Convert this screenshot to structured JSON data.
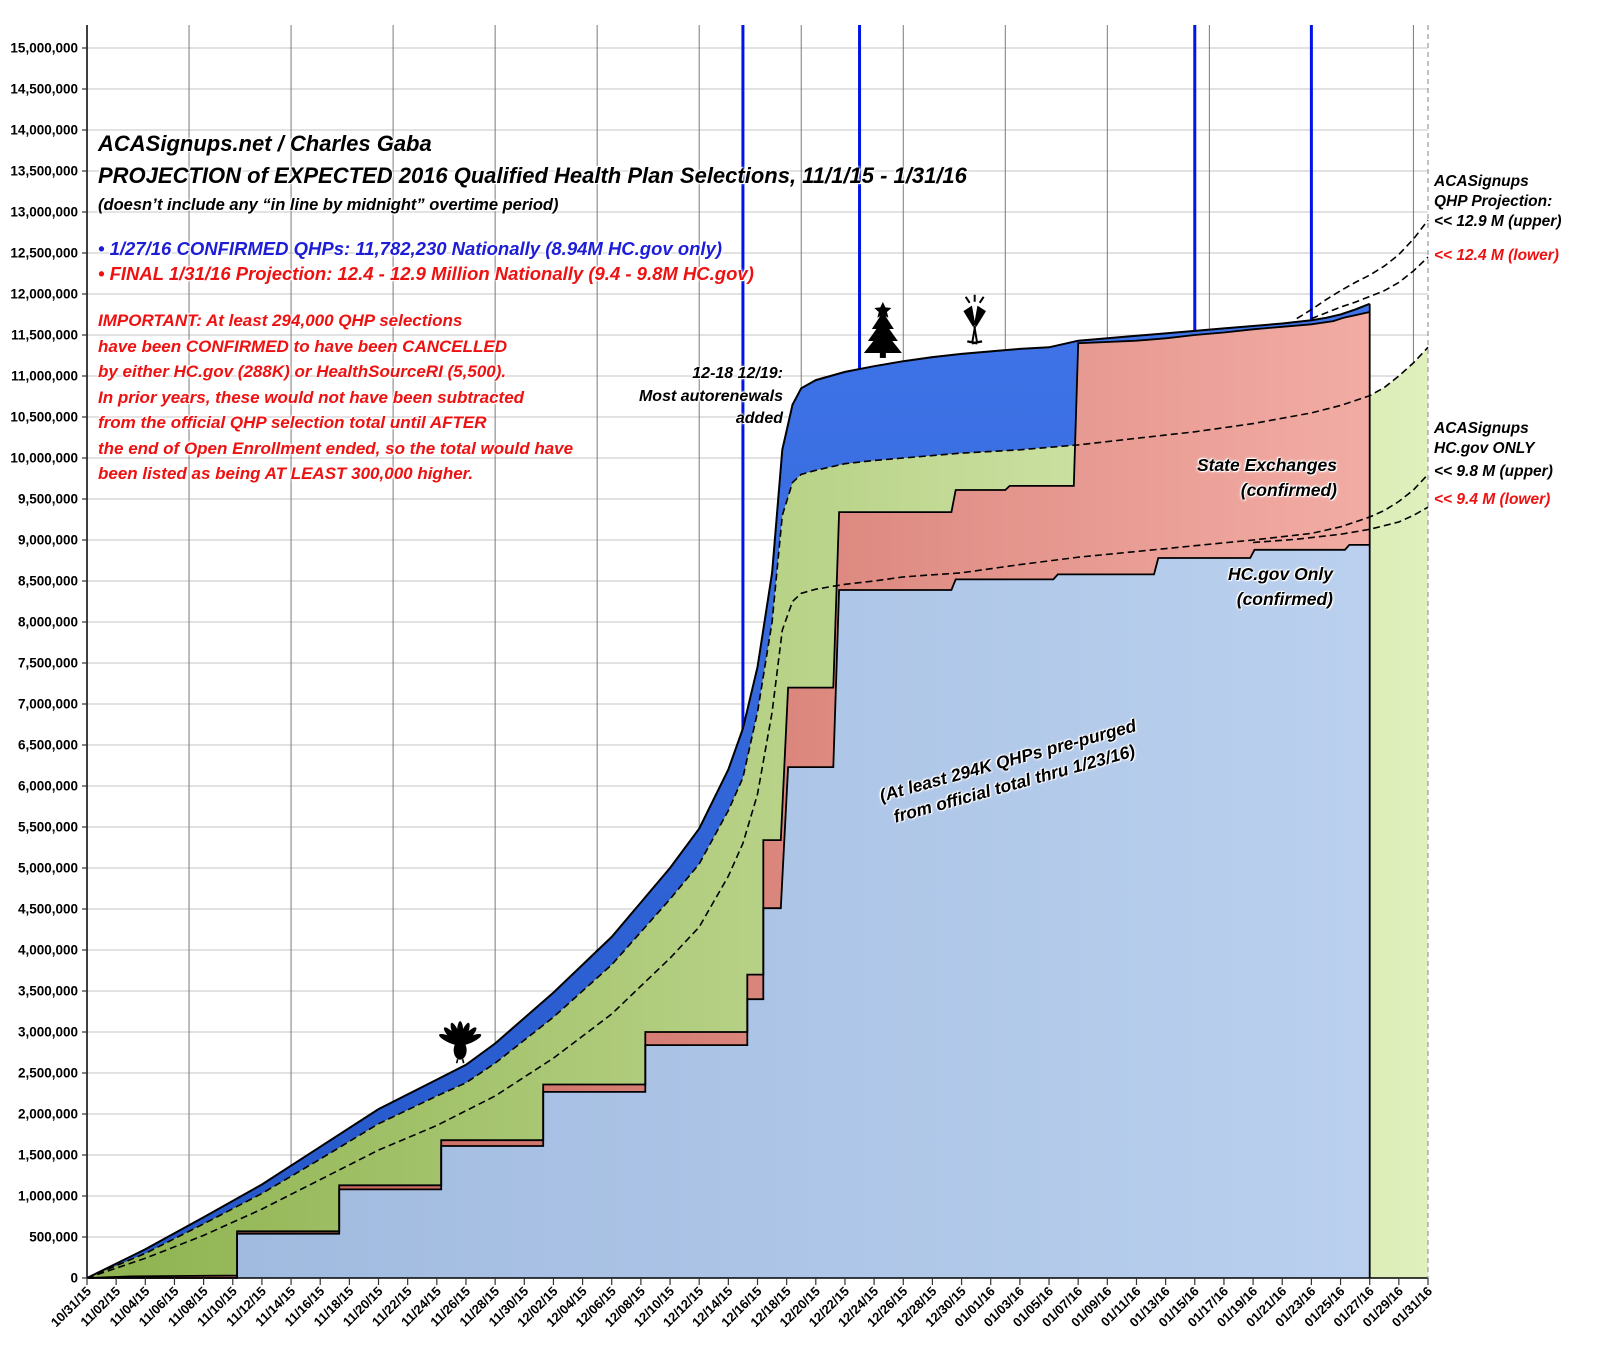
{
  "header": {
    "line1": "ACASignups.net / Charles Gaba",
    "line2": "PROJECTION of EXPECTED 2016 Qualified Health Plan Selections, 11/1/15 - 1/31/16",
    "line3": "(doesn’t include any “in line by midnight” overtime period)",
    "bullet_blue": "• 1/27/16 CONFIRMED QHPs: 11,782,230 Nationally (8.94M HC.gov only)",
    "bullet_red": "• FINAL 1/31/16 Projection: 12.4 - 12.9 Million Nationally (9.4 - 9.8M HC.gov)",
    "important": "IMPORTANT: At least 294,000 QHP selections\nhave been CONFIRMED to have been CANCELLED\nby either HC.gov (288K) or HealthSourceRI (5,500).\nIn prior years, these would not have been subtracted\nfrom the official QHP selection total until AFTER\nthe end of Open Enrollment ended, so the total would have\nbeen listed as being AT LEAST 300,000 higher."
  },
  "annotations": {
    "autorenewal": "12-18 12/19:\nMost autorenewals\nadded",
    "state_exchanges": "State Exchanges\n(confirmed)",
    "hcgov_only": "HC.gov Only\n(confirmed)",
    "prepurged": "(At least 294K QHPs pre-purged\nfrom official total thru 1/23/16)",
    "right_qhp_title": "ACASignups\nQHP Projection:",
    "right_qhp_upper": "<< 12.9 M (upper)",
    "right_qhp_lower": "<< 12.4 M (lower)",
    "right_hc_title": "ACASignups\nHC.gov ONLY",
    "right_hc_upper": "<< 9.8 M (upper)",
    "right_hc_lower": "<< 9.4 M (lower)"
  },
  "colors": {
    "blue_text": "#1d1dd8",
    "red_text": "#ee1111",
    "deadline_line": "#0014e6",
    "grid_horizontal": "#c6c6c6",
    "grid_vertical": "#7a7a7a",
    "area_dark_blue": [
      "#2456c8",
      "#3f74e8"
    ],
    "area_green": [
      "#8db24e",
      "#e0f0bd"
    ],
    "area_salmon": [
      "#c05a50",
      "#f2aca4"
    ],
    "area_light_blue": [
      "#9db8de",
      "#bad0ee"
    ],
    "boundary": "#000000"
  },
  "chart_data": {
    "type": "area",
    "title": "PROJECTION of EXPECTED 2016 Qualified Health Plan Selections, 11/1/15 - 1/31/16",
    "x_axis": {
      "unit": "date",
      "start": "10/31/15",
      "end": "01/31/16",
      "days_total": 92,
      "tick_every_days": 2,
      "gridline_every_days": 7,
      "tick_labels": [
        "10/31/15",
        "11/02/15",
        "11/04/15",
        "11/06/15",
        "11/08/15",
        "11/10/15",
        "11/12/15",
        "11/14/15",
        "11/16/15",
        "11/18/15",
        "11/20/15",
        "11/22/15",
        "11/24/15",
        "11/26/15",
        "11/28/15",
        "11/30/15",
        "12/02/15",
        "12/04/15",
        "12/06/15",
        "12/08/15",
        "12/10/15",
        "12/12/15",
        "12/14/15",
        "12/16/15",
        "12/18/15",
        "12/20/15",
        "12/22/15",
        "12/24/15",
        "12/26/15",
        "12/28/15",
        "12/30/15",
        "01/01/16",
        "01/03/16",
        "01/05/16",
        "01/07/16",
        "01/09/16",
        "01/11/16",
        "01/13/16",
        "01/15/16",
        "01/17/16",
        "01/19/16",
        "01/21/16",
        "01/23/16",
        "01/25/16",
        "01/27/16",
        "01/29/16",
        "01/31/16"
      ]
    },
    "y_axis": {
      "min": 0,
      "max": 15000000,
      "step": 500000,
      "grid": true
    },
    "legend_position": "in-plot labels",
    "deadline_lines": {
      "days": [
        45,
        53,
        76,
        84
      ],
      "dates": [
        "12/15/15",
        "12/23/15",
        "01/15/16",
        "01/23/16"
      ]
    },
    "confirmed_data_ends_day": 88,
    "series": [
      {
        "name": "national_projection_envelope_top",
        "style": "area-darkblue-solid-top",
        "units": "millions",
        "points": [
          [
            0,
            0
          ],
          [
            4,
            0.35
          ],
          [
            8,
            0.74
          ],
          [
            12,
            1.14
          ],
          [
            16,
            1.6
          ],
          [
            20,
            2.06
          ],
          [
            24,
            2.42
          ],
          [
            26,
            2.6
          ],
          [
            28,
            2.86
          ],
          [
            32,
            3.48
          ],
          [
            36,
            4.16
          ],
          [
            40,
            5.0
          ],
          [
            42,
            5.48
          ],
          [
            44,
            6.2
          ],
          [
            45,
            6.7
          ],
          [
            46,
            7.45
          ],
          [
            47,
            8.6
          ],
          [
            47.7,
            10.1
          ],
          [
            48.4,
            10.65
          ],
          [
            49,
            10.85
          ],
          [
            50,
            10.95
          ],
          [
            52,
            11.05
          ],
          [
            54,
            11.12
          ],
          [
            56,
            11.18
          ],
          [
            58,
            11.23
          ],
          [
            60,
            11.27
          ],
          [
            62,
            11.3
          ],
          [
            64,
            11.33
          ],
          [
            66,
            11.35
          ],
          [
            68,
            11.43
          ],
          [
            70,
            11.46
          ],
          [
            72,
            11.49
          ],
          [
            74,
            11.52
          ],
          [
            76,
            11.55
          ],
          [
            78,
            11.58
          ],
          [
            80,
            11.61
          ],
          [
            82,
            11.64
          ],
          [
            84,
            11.68
          ],
          [
            85,
            11.71
          ],
          [
            86,
            11.75
          ],
          [
            87,
            11.81
          ],
          [
            88,
            11.88
          ]
        ]
      },
      {
        "name": "hcgov_projected_area_top",
        "style": "area-green-dashed-top",
        "units": "millions",
        "points": [
          [
            0,
            0
          ],
          [
            4,
            0.3
          ],
          [
            8,
            0.66
          ],
          [
            12,
            1.03
          ],
          [
            16,
            1.45
          ],
          [
            20,
            1.88
          ],
          [
            24,
            2.22
          ],
          [
            26,
            2.38
          ],
          [
            28,
            2.62
          ],
          [
            32,
            3.18
          ],
          [
            36,
            3.82
          ],
          [
            40,
            4.62
          ],
          [
            42,
            5.05
          ],
          [
            44,
            5.7
          ],
          [
            45,
            6.1
          ],
          [
            46,
            6.9
          ],
          [
            47,
            8.0
          ],
          [
            47.7,
            9.3
          ],
          [
            48.4,
            9.7
          ],
          [
            49,
            9.8
          ],
          [
            50,
            9.85
          ],
          [
            52,
            9.93
          ],
          [
            54,
            9.97
          ],
          [
            56,
            10.0
          ],
          [
            60,
            10.06
          ],
          [
            64,
            10.1
          ],
          [
            68,
            10.16
          ],
          [
            72,
            10.24
          ],
          [
            76,
            10.32
          ],
          [
            80,
            10.42
          ],
          [
            84,
            10.55
          ],
          [
            86,
            10.64
          ],
          [
            88,
            10.76
          ],
          [
            89,
            10.86
          ],
          [
            90,
            11.0
          ],
          [
            91,
            11.16
          ],
          [
            92,
            11.35
          ]
        ]
      },
      {
        "name": "total_confirmed_state_exchanges_top",
        "style": "area-salmon-solid-top",
        "units": "millions",
        "points": [
          [
            0,
            0
          ],
          [
            3,
            0.02
          ],
          [
            10.3,
            0.03
          ],
          [
            10.3,
            0.57
          ],
          [
            17.3,
            0.57
          ],
          [
            17.3,
            1.13
          ],
          [
            24.3,
            1.13
          ],
          [
            24.3,
            1.68
          ],
          [
            31.3,
            1.68
          ],
          [
            31.3,
            2.36
          ],
          [
            38.3,
            2.36
          ],
          [
            38.3,
            3.0
          ],
          [
            45.3,
            3.0
          ],
          [
            45.3,
            3.7
          ],
          [
            46.4,
            3.7
          ],
          [
            46.4,
            5.34
          ],
          [
            47.6,
            5.34
          ],
          [
            48.1,
            7.2
          ],
          [
            51.2,
            7.2
          ],
          [
            51.6,
            9.34
          ],
          [
            59.3,
            9.34
          ],
          [
            59.6,
            9.61
          ],
          [
            63,
            9.61
          ],
          [
            63.3,
            9.66
          ],
          [
            67.7,
            9.66
          ],
          [
            68,
            11.4
          ],
          [
            72,
            11.43
          ],
          [
            74,
            11.46
          ],
          [
            76,
            11.5
          ],
          [
            78,
            11.53
          ],
          [
            80,
            11.57
          ],
          [
            82,
            11.6
          ],
          [
            84,
            11.63
          ],
          [
            85.5,
            11.67
          ],
          [
            86.2,
            11.71
          ],
          [
            87,
            11.74
          ],
          [
            88,
            11.78
          ]
        ]
      },
      {
        "name": "hcgov_confirmed_top",
        "style": "area-lightblue-solid-top",
        "units": "millions",
        "points": [
          [
            0,
            0
          ],
          [
            10.3,
            0
          ],
          [
            10.3,
            0.54
          ],
          [
            17.3,
            0.54
          ],
          [
            17.3,
            1.08
          ],
          [
            24.3,
            1.08
          ],
          [
            24.3,
            1.61
          ],
          [
            31.3,
            1.61
          ],
          [
            31.3,
            2.27
          ],
          [
            38.3,
            2.27
          ],
          [
            38.3,
            2.84
          ],
          [
            45.3,
            2.84
          ],
          [
            45.3,
            3.4
          ],
          [
            46.4,
            3.4
          ],
          [
            46.4,
            4.51
          ],
          [
            47.6,
            4.51
          ],
          [
            48.1,
            6.23
          ],
          [
            51.2,
            6.23
          ],
          [
            51.6,
            8.39
          ],
          [
            59.3,
            8.39
          ],
          [
            59.6,
            8.52
          ],
          [
            66.3,
            8.52
          ],
          [
            66.6,
            8.58
          ],
          [
            73.2,
            8.58
          ],
          [
            73.5,
            8.78
          ],
          [
            79.8,
            8.78
          ],
          [
            80.1,
            8.88
          ],
          [
            86.3,
            8.88
          ],
          [
            86.6,
            8.94
          ],
          [
            88,
            8.94
          ]
        ]
      },
      {
        "name": "hcgov_projection_model_to_9.8M",
        "style": "dashed-line",
        "units": "millions",
        "points": [
          [
            0,
            0
          ],
          [
            4,
            0.24
          ],
          [
            8,
            0.52
          ],
          [
            12,
            0.84
          ],
          [
            16,
            1.2
          ],
          [
            20,
            1.56
          ],
          [
            24,
            1.86
          ],
          [
            28,
            2.22
          ],
          [
            32,
            2.68
          ],
          [
            36,
            3.22
          ],
          [
            40,
            3.9
          ],
          [
            42,
            4.28
          ],
          [
            44,
            4.9
          ],
          [
            45,
            5.3
          ],
          [
            46,
            5.9
          ],
          [
            47,
            6.9
          ],
          [
            47.7,
            7.9
          ],
          [
            48.4,
            8.25
          ],
          [
            49,
            8.35
          ],
          [
            50,
            8.4
          ],
          [
            52,
            8.46
          ],
          [
            54,
            8.5
          ],
          [
            56,
            8.55
          ],
          [
            60,
            8.6
          ],
          [
            64,
            8.7
          ],
          [
            68,
            8.79
          ],
          [
            72,
            8.86
          ],
          [
            76,
            8.93
          ],
          [
            80,
            9.0
          ],
          [
            84,
            9.08
          ],
          [
            86,
            9.16
          ],
          [
            88,
            9.28
          ],
          [
            89,
            9.36
          ],
          [
            90,
            9.47
          ],
          [
            91,
            9.61
          ],
          [
            92,
            9.8
          ]
        ]
      },
      {
        "name": "hcgov_projection_lower_to_9.4M",
        "style": "dashed-line",
        "units": "millions",
        "points": [
          [
            80,
            8.97
          ],
          [
            83,
            9.01
          ],
          [
            86,
            9.07
          ],
          [
            88,
            9.13
          ],
          [
            90,
            9.22
          ],
          [
            91,
            9.3
          ],
          [
            92,
            9.4
          ]
        ]
      },
      {
        "name": "national_projection_upper_to_12.9M",
        "style": "dashed-line",
        "units": "millions",
        "points": [
          [
            83,
            11.7
          ],
          [
            84,
            11.81
          ],
          [
            85,
            11.93
          ],
          [
            86,
            12.04
          ],
          [
            87,
            12.14
          ],
          [
            88,
            12.23
          ],
          [
            89,
            12.34
          ],
          [
            90,
            12.48
          ],
          [
            91,
            12.67
          ],
          [
            92,
            12.9
          ]
        ]
      },
      {
        "name": "national_projection_lower_to_12.4M",
        "style": "dashed-line",
        "units": "millions",
        "points": [
          [
            84,
            11.7
          ],
          [
            85,
            11.77
          ],
          [
            86,
            11.84
          ],
          [
            87,
            11.9
          ],
          [
            88,
            11.97
          ],
          [
            89,
            12.04
          ],
          [
            90,
            12.14
          ],
          [
            91,
            12.28
          ],
          [
            92,
            12.45
          ]
        ]
      }
    ],
    "icons": [
      {
        "name": "thanksgiving-turkey-icon",
        "day": 25.6,
        "value_millions": 2.62
      },
      {
        "name": "christmas-tree-icon",
        "day": 54.6,
        "value_millions": 11.22
      },
      {
        "name": "champagne-toast-icon",
        "day": 60.9,
        "value_millions": 11.32
      }
    ]
  }
}
